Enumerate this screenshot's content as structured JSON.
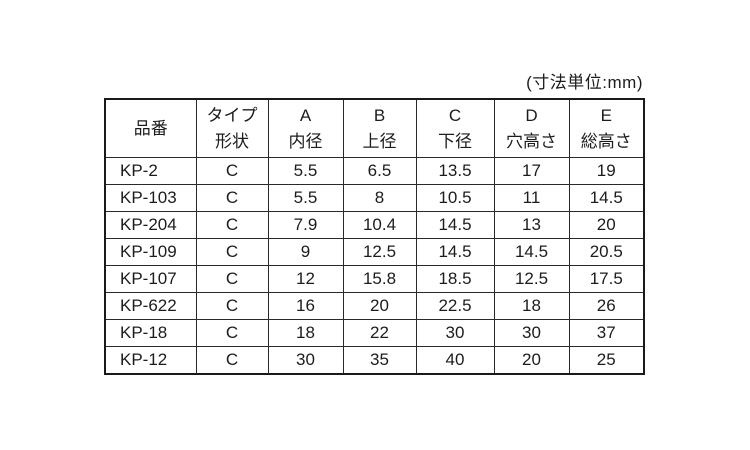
{
  "page": {
    "unit_label": "(寸法単位:mm)"
  },
  "table": {
    "columns": [
      {
        "top": "品番",
        "bottom": ""
      },
      {
        "top": "タイプ",
        "bottom": "形状"
      },
      {
        "top": "A",
        "bottom": "内径"
      },
      {
        "top": "B",
        "bottom": "上径"
      },
      {
        "top": "C",
        "bottom": "下径"
      },
      {
        "top": "D",
        "bottom": "穴高さ"
      },
      {
        "top": "E",
        "bottom": "総高さ"
      }
    ],
    "rows": [
      [
        "KP-2",
        "C",
        "5.5",
        "6.5",
        "13.5",
        "17",
        "19"
      ],
      [
        "KP-103",
        "C",
        "5.5",
        "8",
        "10.5",
        "11",
        "14.5"
      ],
      [
        "KP-204",
        "C",
        "7.9",
        "10.4",
        "14.5",
        "13",
        "20"
      ],
      [
        "KP-109",
        "C",
        "9",
        "12.5",
        "14.5",
        "14.5",
        "20.5"
      ],
      [
        "KP-107",
        "C",
        "12",
        "15.8",
        "18.5",
        "12.5",
        "17.5"
      ],
      [
        "KP-622",
        "C",
        "16",
        "20",
        "22.5",
        "18",
        "26"
      ],
      [
        "KP-18",
        "C",
        "18",
        "22",
        "30",
        "30",
        "37"
      ],
      [
        "KP-12",
        "C",
        "30",
        "35",
        "40",
        "20",
        "25"
      ]
    ]
  }
}
